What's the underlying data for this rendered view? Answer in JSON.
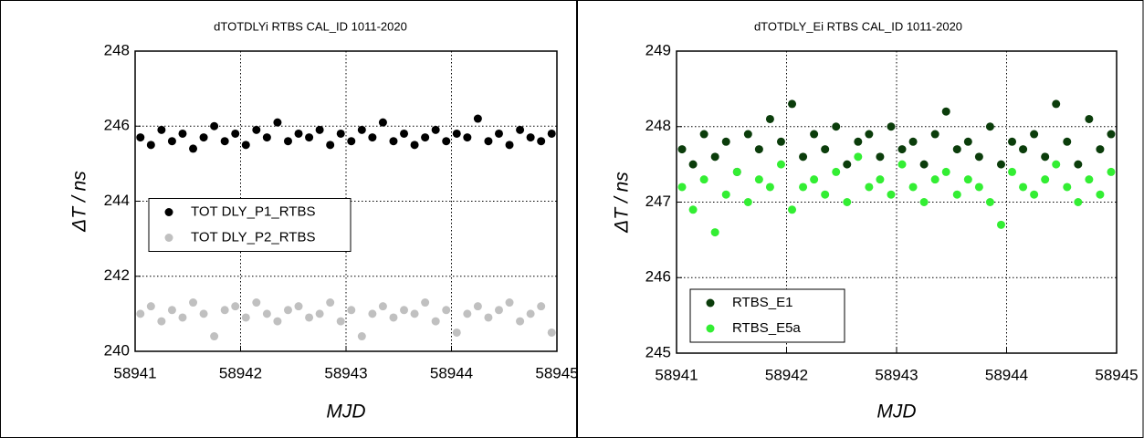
{
  "chart_data": [
    {
      "type": "scatter",
      "title": "dTOTDLYi RTBS CAL_ID 1011-2020",
      "x_label": "MJD",
      "y_label": "ΔT / ns",
      "xlim": [
        58941,
        58945
      ],
      "xticks": [
        58941,
        58942,
        58943,
        58944,
        58945
      ],
      "ylim": [
        240,
        248
      ],
      "yticks": [
        240,
        242,
        244,
        246,
        248
      ],
      "grid": true,
      "legend": "center-left",
      "x": [
        58941.05,
        58941.15,
        58941.25,
        58941.35,
        58941.45,
        58941.55,
        58941.65,
        58941.75,
        58941.85,
        58941.95,
        58942.05,
        58942.15,
        58942.25,
        58942.35,
        58942.45,
        58942.55,
        58942.65,
        58942.75,
        58942.85,
        58942.95,
        58943.05,
        58943.15,
        58943.25,
        58943.35,
        58943.45,
        58943.55,
        58943.65,
        58943.75,
        58943.85,
        58943.95,
        58944.05,
        58944.15,
        58944.25,
        58944.35,
        58944.45,
        58944.55,
        58944.65,
        58944.75,
        58944.85,
        58944.95
      ],
      "series": [
        {
          "name": "TOT DLY_P1_RTBS",
          "color": "#000000",
          "values": [
            245.7,
            245.5,
            245.9,
            245.6,
            245.8,
            245.4,
            245.7,
            246.0,
            245.6,
            245.8,
            245.5,
            245.9,
            245.7,
            246.1,
            245.6,
            245.8,
            245.7,
            245.9,
            245.5,
            245.8,
            245.6,
            245.9,
            245.7,
            246.1,
            245.6,
            245.8,
            245.5,
            245.7,
            245.9,
            245.6,
            245.8,
            245.7,
            246.2,
            245.6,
            245.8,
            245.5,
            245.9,
            245.7,
            245.6,
            245.8
          ]
        },
        {
          "name": "TOT DLY_P2_RTBS",
          "color": "#c0c0c0",
          "values": [
            241.0,
            241.2,
            240.8,
            241.1,
            240.9,
            241.3,
            241.0,
            240.4,
            241.1,
            241.2,
            240.9,
            241.3,
            241.0,
            240.8,
            241.1,
            241.2,
            240.9,
            241.0,
            241.3,
            240.8,
            241.1,
            240.4,
            241.0,
            241.2,
            240.9,
            241.1,
            241.0,
            241.3,
            240.8,
            241.1,
            240.5,
            241.0,
            241.2,
            240.9,
            241.1,
            241.3,
            240.8,
            241.0,
            241.2,
            240.5
          ]
        }
      ]
    },
    {
      "type": "scatter",
      "title": "dTOTDLY_Ei RTBS CAL_ID 1011-2020",
      "x_label": "MJD",
      "y_label": "ΔT / ns",
      "xlim": [
        58941,
        58945
      ],
      "xticks": [
        58941,
        58942,
        58943,
        58944,
        58945
      ],
      "ylim": [
        245,
        249
      ],
      "yticks": [
        245,
        246,
        247,
        248,
        249
      ],
      "grid": true,
      "legend": "lower-left",
      "x": [
        58941.05,
        58941.15,
        58941.25,
        58941.35,
        58941.45,
        58941.55,
        58941.65,
        58941.75,
        58941.85,
        58941.95,
        58942.05,
        58942.15,
        58942.25,
        58942.35,
        58942.45,
        58942.55,
        58942.65,
        58942.75,
        58942.85,
        58942.95,
        58943.05,
        58943.15,
        58943.25,
        58943.35,
        58943.45,
        58943.55,
        58943.65,
        58943.75,
        58943.85,
        58943.95,
        58944.05,
        58944.15,
        58944.25,
        58944.35,
        58944.45,
        58944.55,
        58944.65,
        58944.75,
        58944.85,
        58944.95
      ],
      "series": [
        {
          "name": "RTBS_E1",
          "color": "#0b3d0b",
          "values": [
            247.7,
            247.5,
            247.9,
            247.6,
            247.8,
            247.4,
            247.9,
            247.7,
            248.1,
            247.8,
            248.3,
            247.6,
            247.9,
            247.7,
            248.0,
            247.5,
            247.8,
            247.9,
            247.6,
            248.0,
            247.7,
            247.8,
            247.5,
            247.9,
            248.2,
            247.7,
            247.8,
            247.6,
            248.0,
            247.5,
            247.8,
            247.7,
            247.9,
            247.6,
            248.3,
            247.8,
            247.5,
            248.1,
            247.7,
            247.9
          ]
        },
        {
          "name": "RTBS_E5a",
          "color": "#33ee33",
          "values": [
            247.2,
            246.9,
            247.3,
            246.6,
            247.1,
            247.4,
            247.0,
            247.3,
            247.2,
            247.5,
            246.9,
            247.2,
            247.3,
            247.1,
            247.4,
            247.0,
            247.6,
            247.2,
            247.3,
            247.1,
            247.5,
            247.2,
            247.0,
            247.3,
            247.4,
            247.1,
            247.3,
            247.2,
            247.0,
            246.7,
            247.4,
            247.2,
            247.1,
            247.3,
            247.5,
            247.2,
            247.0,
            247.3,
            247.1,
            247.4
          ]
        }
      ]
    }
  ]
}
